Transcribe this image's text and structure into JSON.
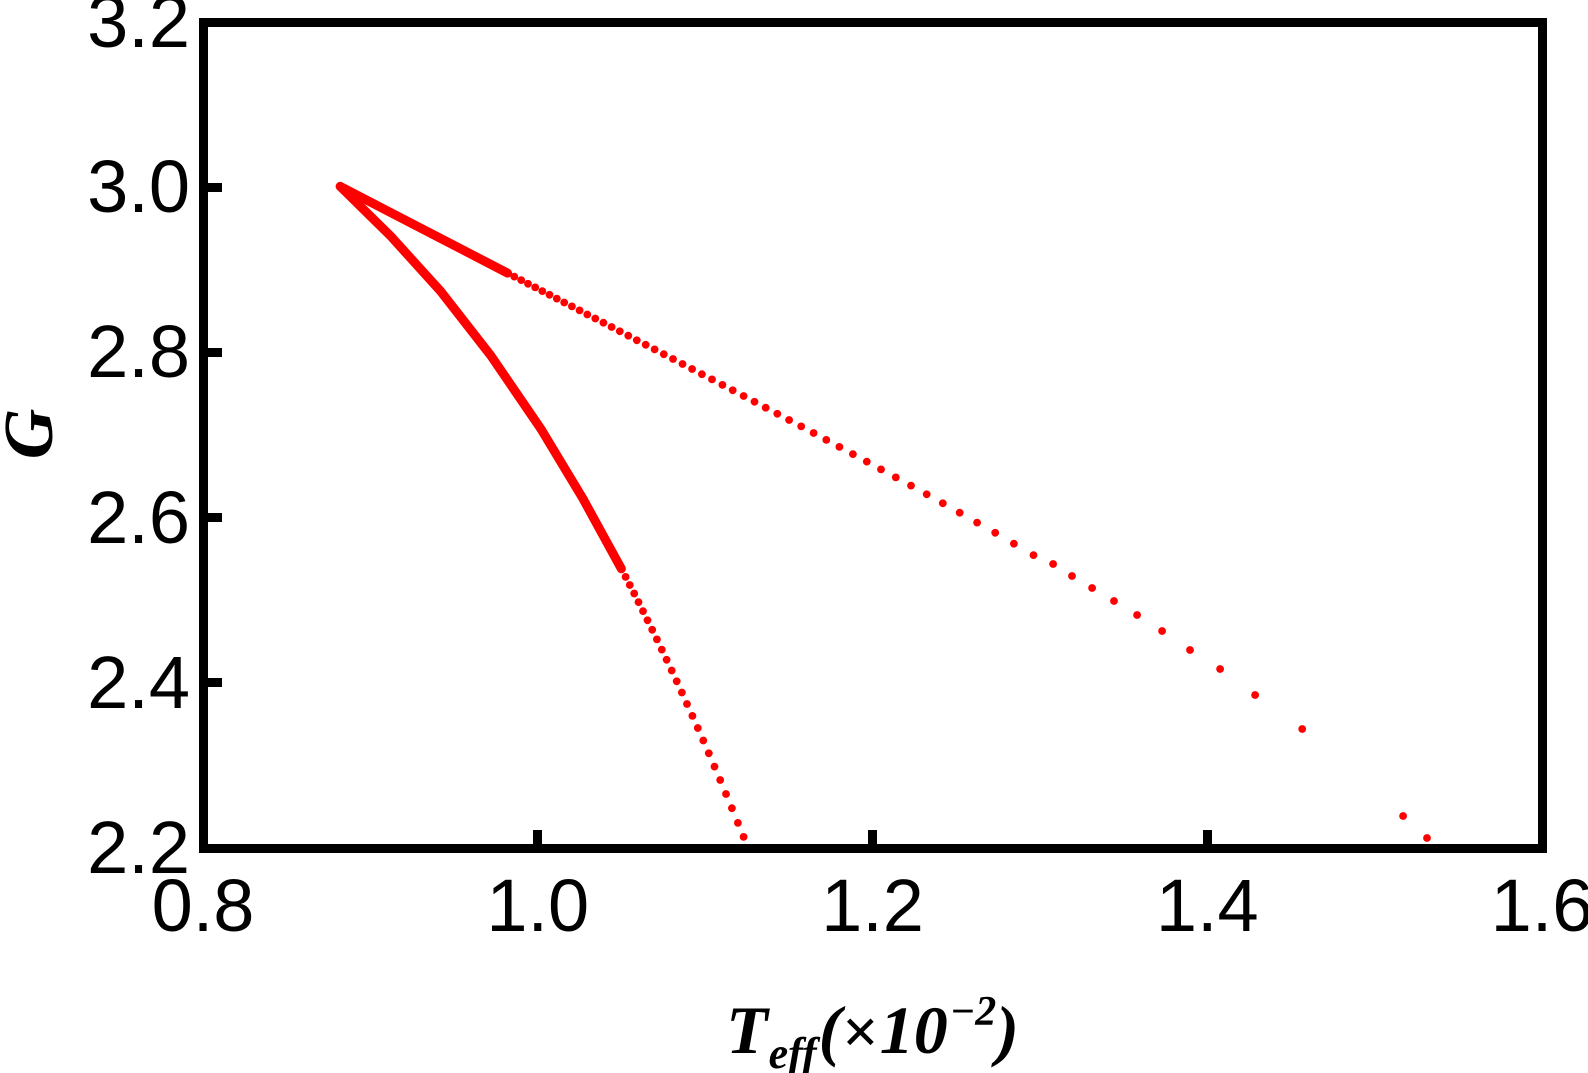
{
  "figure": {
    "background": "#ffffff",
    "frame_color": "#000000"
  },
  "chart_data": {
    "type": "scatter",
    "title": "",
    "xlabel": "T_eff(×10⁻²)",
    "xlabel_parts": {
      "symbol": "T",
      "subscript": "eff",
      "open": "(",
      "times": "×",
      "base": "10",
      "exponent": "−2",
      "close": ")"
    },
    "ylabel": "G",
    "xlim": [
      0.8,
      1.6
    ],
    "ylim": [
      2.2,
      3.2
    ],
    "grid": false,
    "legend_position": "none",
    "point_color": "#ff0000",
    "cusp_point": [
      0.882,
      3.001
    ],
    "x_axis": {
      "tick_values": [
        0.8,
        1.0,
        1.2,
        1.4,
        1.6
      ],
      "tick_labels": [
        "0.8",
        "1.0",
        "1.2",
        "1.4",
        "1.6"
      ],
      "mark_values": [
        1.0,
        1.2,
        1.4
      ]
    },
    "y_axis": {
      "tick_values": [
        3.2,
        3.0,
        2.8,
        2.6,
        2.4,
        2.2
      ],
      "tick_labels": [
        "3.2",
        "3.0",
        "2.8",
        "2.6",
        "2.4",
        "2.2"
      ],
      "mark_values": [
        3.0,
        2.8,
        2.6,
        2.4
      ]
    },
    "series": [
      {
        "name": "upper-branch",
        "dense_polyline": [
          [
            0.882,
            3.001
          ],
          [
            0.932,
            2.9485
          ],
          [
            0.982,
            2.896
          ]
        ],
        "points": [
          [
            0.982,
            2.896
          ],
          [
            0.986,
            2.8918
          ],
          [
            0.9901,
            2.8875
          ],
          [
            0.9942,
            2.8831
          ],
          [
            0.9985,
            2.8787
          ],
          [
            1.0027,
            2.8742
          ],
          [
            1.007,
            2.8697
          ],
          [
            1.0114,
            2.8651
          ],
          [
            1.0158,
            2.8604
          ],
          [
            1.0204,
            2.8557
          ],
          [
            1.025,
            2.8508
          ],
          [
            1.0296,
            2.8459
          ],
          [
            1.0344,
            2.841
          ],
          [
            1.0392,
            2.8359
          ],
          [
            1.0441,
            2.8307
          ],
          [
            1.049,
            2.8255
          ],
          [
            1.0541,
            2.8202
          ],
          [
            1.0592,
            2.8147
          ],
          [
            1.0645,
            2.8092
          ],
          [
            1.0698,
            2.8036
          ],
          [
            1.0753,
            2.7978
          ],
          [
            1.0808,
            2.792
          ],
          [
            1.0865,
            2.786
          ],
          [
            1.0922,
            2.7799
          ],
          [
            1.0981,
            2.7736
          ],
          [
            1.1041,
            2.7673
          ],
          [
            1.1103,
            2.7607
          ],
          [
            1.1165,
            2.7541
          ],
          [
            1.123,
            2.7472
          ],
          [
            1.1295,
            2.7402
          ],
          [
            1.1362,
            2.7331
          ],
          [
            1.1431,
            2.7257
          ],
          [
            1.1502,
            2.7181
          ],
          [
            1.1574,
            2.7104
          ],
          [
            1.1648,
            2.7024
          ],
          [
            1.1724,
            2.6941
          ],
          [
            1.1802,
            2.6856
          ],
          [
            1.1883,
            2.6769
          ],
          [
            1.1966,
            2.6678
          ],
          [
            1.2051,
            2.6584
          ],
          [
            1.2139,
            2.6487
          ],
          [
            1.223,
            2.6387
          ],
          [
            1.2324,
            2.6282
          ],
          [
            1.242,
            2.6173
          ],
          [
            1.2521,
            2.6059
          ],
          [
            1.2625,
            2.594
          ],
          [
            1.2733,
            2.5816
          ],
          [
            1.2845,
            2.5684
          ],
          [
            1.2962,
            2.5546
          ],
          [
            1.3079,
            2.5438
          ],
          [
            1.3192,
            2.5293
          ],
          [
            1.3312,
            2.5148
          ],
          [
            1.3443,
            2.499
          ],
          [
            1.3581,
            2.4821
          ],
          [
            1.373,
            2.4627
          ],
          [
            1.3897,
            2.4397
          ],
          [
            1.4077,
            2.4167
          ],
          [
            1.4286,
            2.3852
          ],
          [
            1.4567,
            2.3441
          ],
          [
            1.517,
            2.2387
          ],
          [
            1.5313,
            2.2121
          ]
        ]
      },
      {
        "name": "lower-branch",
        "dense_polyline": [
          [
            0.882,
            3.001
          ],
          [
            0.912,
            2.941
          ],
          [
            0.942,
            2.874
          ],
          [
            0.972,
            2.796
          ],
          [
            1.002,
            2.707
          ],
          [
            1.027,
            2.623
          ],
          [
            1.05,
            2.538
          ]
        ],
        "points": [
          [
            1.05,
            2.538
          ],
          [
            1.0525,
            2.5282
          ],
          [
            1.055,
            2.5184
          ],
          [
            1.0576,
            2.5081
          ],
          [
            1.0602,
            2.4977
          ],
          [
            1.0629,
            2.4868
          ],
          [
            1.0656,
            2.4757
          ],
          [
            1.0684,
            2.4642
          ],
          [
            1.0712,
            2.4525
          ],
          [
            1.0741,
            2.4402
          ],
          [
            1.077,
            2.4279
          ],
          [
            1.08,
            2.4149
          ],
          [
            1.083,
            2.4018
          ],
          [
            1.0861,
            2.3882
          ],
          [
            1.0892,
            2.3743
          ],
          [
            1.0924,
            2.3599
          ],
          [
            1.0956,
            2.3453
          ],
          [
            1.0989,
            2.3301
          ],
          [
            1.1022,
            2.3147
          ],
          [
            1.1056,
            2.2986
          ],
          [
            1.109,
            2.2823
          ],
          [
            1.1125,
            2.2654
          ],
          [
            1.116,
            2.2482
          ],
          [
            1.1196,
            2.2304
          ],
          [
            1.123,
            2.2134
          ]
        ]
      }
    ]
  }
}
